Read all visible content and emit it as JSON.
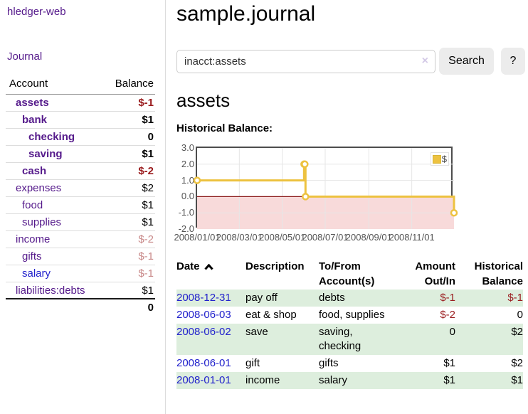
{
  "app": {
    "brand": "hledger-web",
    "nav_journal": "Journal"
  },
  "colors": {
    "link_purple": "#551a8b",
    "link_blue": "#2222cc",
    "negative": "#9a1c1e",
    "negative_muted": "#c98a8a",
    "row_alt_green": "#ddeedd",
    "chart_series": "#edc240",
    "chart_negative_fill": "#f8dada",
    "chart_zero_line": "#8b1a1a"
  },
  "sidebar": {
    "header": {
      "account": "Account",
      "balance": "Balance"
    },
    "accounts": [
      {
        "name": "assets",
        "depth": 1,
        "bold": true,
        "color": "purple",
        "balance": "$-1",
        "balance_style": "negative"
      },
      {
        "name": "bank",
        "depth": 2,
        "bold": true,
        "color": "purple",
        "balance": "$1",
        "balance_style": "normal"
      },
      {
        "name": "checking",
        "depth": 3,
        "bold": true,
        "color": "purple",
        "balance": "0",
        "balance_style": "normal"
      },
      {
        "name": "saving",
        "depth": 3,
        "bold": true,
        "color": "purple",
        "balance": "$1",
        "balance_style": "normal"
      },
      {
        "name": "cash",
        "depth": 2,
        "bold": true,
        "color": "purple",
        "balance": "$-2",
        "balance_style": "negative"
      },
      {
        "name": "expenses",
        "depth": 1,
        "bold": false,
        "color": "purple",
        "balance": "$2",
        "balance_style": "normal"
      },
      {
        "name": "food",
        "depth": 2,
        "bold": false,
        "color": "purple",
        "balance": "$1",
        "balance_style": "normal"
      },
      {
        "name": "supplies",
        "depth": 2,
        "bold": false,
        "color": "purple",
        "balance": "$1",
        "balance_style": "normal"
      },
      {
        "name": "income",
        "depth": 1,
        "bold": false,
        "color": "purple",
        "balance": "$-2",
        "balance_style": "negative-muted"
      },
      {
        "name": "gifts",
        "depth": 2,
        "bold": false,
        "color": "purple",
        "balance": "$-1",
        "balance_style": "negative-muted"
      },
      {
        "name": "salary",
        "depth": 2,
        "bold": false,
        "color": "blue",
        "balance": "$-1",
        "balance_style": "negative-muted"
      },
      {
        "name": "liabilities:debts",
        "depth": 1,
        "bold": false,
        "color": "purple",
        "balance": "$1",
        "balance_style": "normal"
      }
    ],
    "total": "0"
  },
  "header": {
    "title": "sample.journal"
  },
  "search": {
    "value": "inacct:assets",
    "clear_icon": "×",
    "button": "Search",
    "help_button": "?"
  },
  "account_page": {
    "heading": "assets",
    "chart_label": "Historical Balance:"
  },
  "chart_data": {
    "type": "line",
    "step": true,
    "title": "Historical Balance:",
    "series": [
      {
        "name": "$",
        "color": "#edc240",
        "points": [
          [
            "2008/01/01",
            1.0
          ],
          [
            "2008/06/01",
            2.0
          ],
          [
            "2008/06/02",
            2.0
          ],
          [
            "2008/06/03",
            0.0
          ],
          [
            "2008/12/31",
            -1.0
          ]
        ]
      }
    ],
    "x_ticks": [
      "2008/01/01",
      "2008/03/01",
      "2008/05/01",
      "2008/07/01",
      "2008/09/01",
      "2008/11/01"
    ],
    "y_ticks": [
      "3.0",
      "2.0",
      "1.0",
      "0.0",
      "-1.0",
      "-2.0"
    ],
    "xlim": [
      "2008/01/01",
      "2008/12/31"
    ],
    "ylim": [
      -2,
      3
    ],
    "grid": true,
    "legend": {
      "label": "$",
      "position": "top-right"
    },
    "negative_region_color": "#f8dada",
    "zero_line_color": "#8b1a1a"
  },
  "register": {
    "columns": [
      {
        "label": "Date",
        "align": "left",
        "sort": "asc"
      },
      {
        "label": "Description",
        "align": "left"
      },
      {
        "label": "To/From Account(s)",
        "align": "left"
      },
      {
        "label": "Amount Out/In",
        "align": "right"
      },
      {
        "label": "Historical Balance",
        "align": "right"
      }
    ],
    "rows": [
      {
        "date": "2008-12-31",
        "description": "pay off",
        "accounts": "debts",
        "amount": "$-1",
        "amount_negative": true,
        "balance": "$-1",
        "balance_negative": true
      },
      {
        "date": "2008-06-03",
        "description": "eat & shop",
        "accounts": "food, supplies",
        "amount": "$-2",
        "amount_negative": true,
        "balance": "0",
        "balance_negative": false
      },
      {
        "date": "2008-06-02",
        "description": "save",
        "accounts": "saving, checking",
        "amount": "0",
        "amount_negative": false,
        "balance": "$2",
        "balance_negative": false
      },
      {
        "date": "2008-06-01",
        "description": "gift",
        "accounts": "gifts",
        "amount": "$1",
        "amount_negative": false,
        "balance": "$2",
        "balance_negative": false
      },
      {
        "date": "2008-01-01",
        "description": "income",
        "accounts": "salary",
        "amount": "$1",
        "amount_negative": false,
        "balance": "$1",
        "balance_negative": false
      }
    ]
  }
}
